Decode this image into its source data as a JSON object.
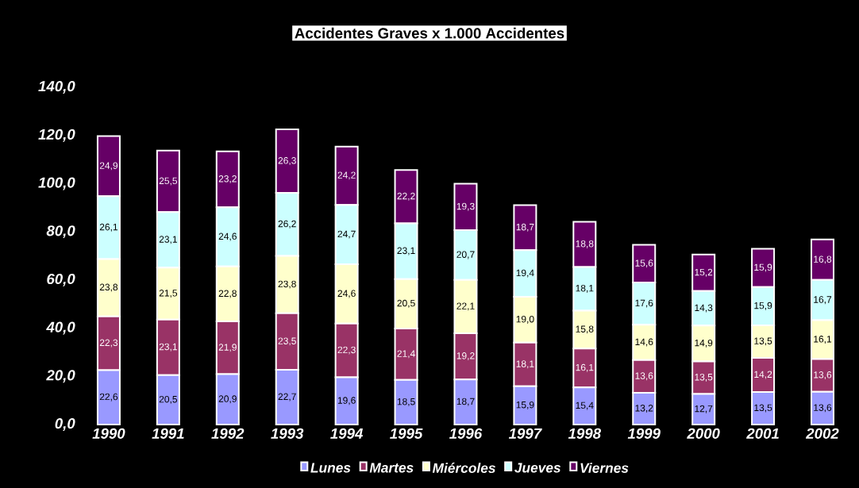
{
  "chart_data": {
    "type": "bar",
    "title": "Accidentes Graves x 1.000 Accidentes",
    "stacked": true,
    "legend": "bottom",
    "categories": [
      "1990",
      "1991",
      "1992",
      "1993",
      "1994",
      "1995",
      "1996",
      "1997",
      "1998",
      "1999",
      "2000",
      "2001",
      "2002"
    ],
    "ylim": [
      0,
      140
    ],
    "yticks": [
      {
        "value": 0,
        "label": "0,0"
      },
      {
        "value": 20,
        "label": "20,0"
      },
      {
        "value": 40,
        "label": "40,0"
      },
      {
        "value": 60,
        "label": "60,0"
      },
      {
        "value": 80,
        "label": "80,0"
      },
      {
        "value": 100,
        "label": "100,0"
      },
      {
        "value": 120,
        "label": "120,0"
      },
      {
        "value": 140,
        "label": "140,0"
      }
    ],
    "series": [
      {
        "name": "Lunes",
        "color": "#9999ff",
        "values": [
          22.6,
          20.5,
          20.9,
          22.7,
          19.6,
          18.5,
          18.7,
          15.9,
          15.4,
          13.2,
          12.7,
          13.5,
          13.6
        ],
        "value_labels": [
          "22,6",
          "20,5",
          "20,9",
          "22,7",
          "19,6",
          "18,5",
          "18,7",
          "15,9",
          "15,4",
          "13,2",
          "12,7",
          "13,5",
          "13,6"
        ]
      },
      {
        "name": "Martes",
        "color": "#993366",
        "values": [
          22.3,
          23.1,
          21.9,
          23.5,
          22.3,
          21.4,
          19.2,
          18.1,
          16.1,
          13.6,
          13.5,
          14.2,
          13.6
        ],
        "value_labels": [
          "22,3",
          "23,1",
          "21,9",
          "23,5",
          "22,3",
          "21,4",
          "19,2",
          "18,1",
          "16,1",
          "13,6",
          "13,5",
          "14,2",
          "13,6"
        ]
      },
      {
        "name": "Miércoles",
        "color": "#ffffcc",
        "values": [
          23.8,
          21.5,
          22.8,
          23.8,
          24.6,
          20.5,
          22.1,
          19.0,
          15.8,
          14.6,
          14.9,
          13.5,
          16.1
        ],
        "value_labels": [
          "23,8",
          "21,5",
          "22,8",
          "23,8",
          "24,6",
          "20,5",
          "22,1",
          "19,0",
          "15,8",
          "14,6",
          "14,9",
          "13,5",
          "16,1"
        ]
      },
      {
        "name": "Jueves",
        "color": "#ccffff",
        "values": [
          26.1,
          23.1,
          24.6,
          26.2,
          24.7,
          23.1,
          20.7,
          19.4,
          18.1,
          17.6,
          14.3,
          15.9,
          16.7
        ],
        "value_labels": [
          "26,1",
          "23,1",
          "24,6",
          "26,2",
          "24,7",
          "23,1",
          "20,7",
          "19,4",
          "18,1",
          "17,6",
          "14,3",
          "15,9",
          "16,7"
        ]
      },
      {
        "name": "Viernes",
        "color": "#660066",
        "values": [
          24.9,
          25.5,
          23.2,
          26.3,
          24.2,
          22.2,
          19.3,
          18.7,
          18.8,
          15.6,
          15.2,
          15.9,
          16.8
        ],
        "value_labels": [
          "24,9",
          "25,5",
          "23,2",
          "26,3",
          "24,2",
          "22,2",
          "19,3",
          "18,7",
          "18,8",
          "15,6",
          "15,2",
          "15,9",
          "16,8"
        ]
      }
    ]
  }
}
